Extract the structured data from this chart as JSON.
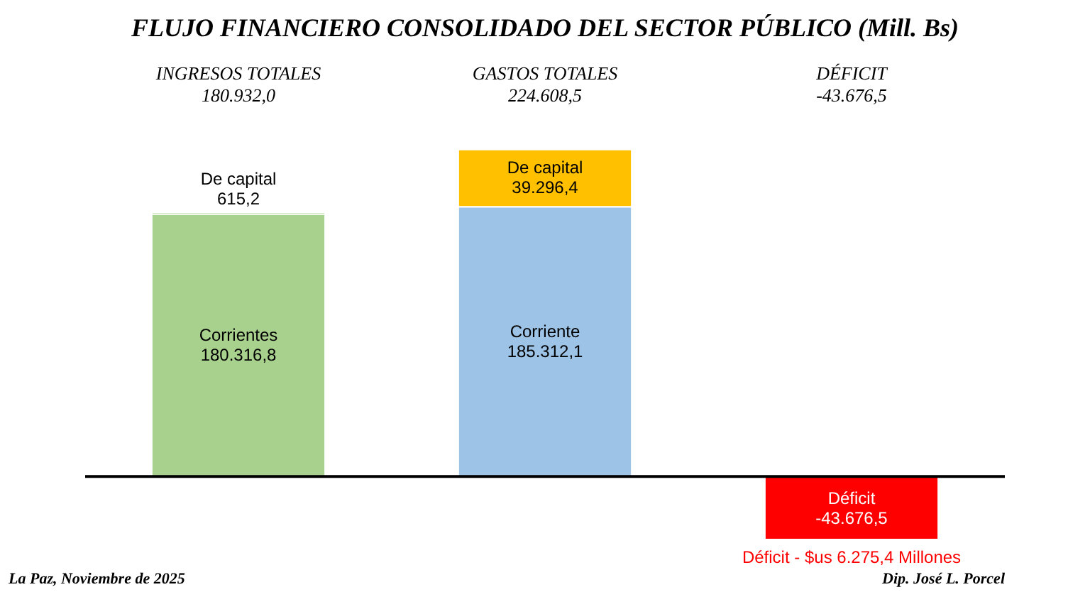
{
  "chart_data": {
    "type": "bar",
    "stacked": true,
    "title": "FLUJO FINANCIERO CONSOLIDADO DEL SECTOR PÚBLICO (Mill. Bs)",
    "categories": [
      "INGRESOS TOTALES\n180.932,0",
      "GASTOS TOTALES\n224.608,5",
      "DÉFICIT\n-43.676,5"
    ],
    "series": [
      {
        "name": "Corrientes",
        "color": "#a9d18e",
        "values": [
          180316.8,
          null,
          null
        ],
        "value_labels": [
          "180.316,8",
          null,
          null
        ]
      },
      {
        "name": "De capital",
        "color": "#70ad47",
        "values": [
          615.2,
          null,
          null
        ],
        "value_labels": [
          "615,2",
          null,
          null
        ]
      },
      {
        "name": "Corriente",
        "color": "#9dc3e6",
        "values": [
          null,
          185312.1,
          null
        ],
        "value_labels": [
          null,
          "185.312,1",
          null
        ]
      },
      {
        "name": "De capital",
        "color": "#ffc000",
        "values": [
          null,
          39296.4,
          null
        ],
        "value_labels": [
          null,
          "39.296,4",
          null
        ]
      },
      {
        "name": "Déficit",
        "color": "#ff0000",
        "values": [
          null,
          null,
          -43676.5
        ],
        "value_labels": [
          null,
          null,
          "-43.676,5"
        ]
      }
    ],
    "annotations": [
      {
        "text": "Déficit - $us 6.275,4 Millones",
        "x": "DÉFICIT\n-43.676,5",
        "y": -43676.5
      },
      "La Paz, Noviembre de 2025",
      "Dip. José L. Porcel"
    ],
    "grid": false,
    "legend": false
  }
}
